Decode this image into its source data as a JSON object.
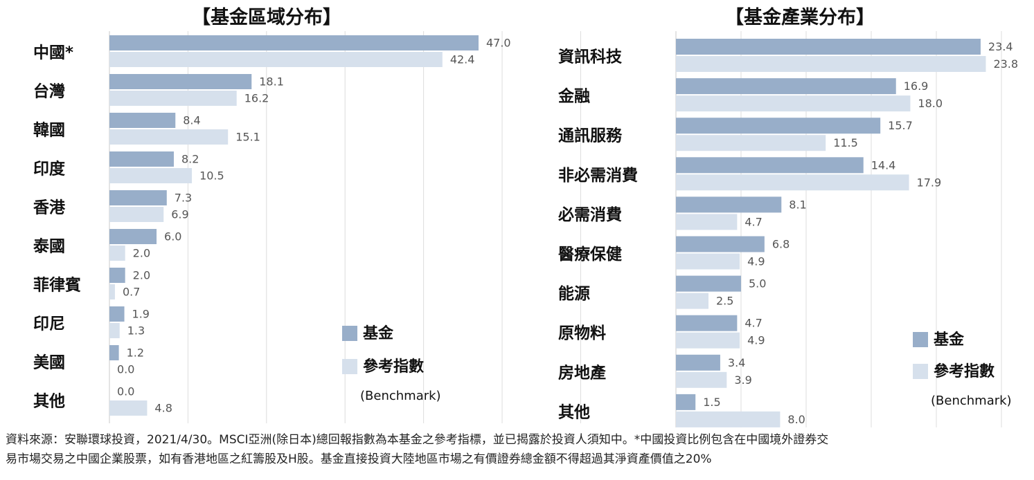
{
  "colors": {
    "fund": "#98aec9",
    "benchmark": "#d6e0ec",
    "grid": "#dcdcdc",
    "value_label": "#555555"
  },
  "legend": {
    "fund": "基金",
    "benchmark": "參考指數",
    "benchmark_sub": "(Benchmark)"
  },
  "chart_data": [
    {
      "type": "bar",
      "orientation": "horizontal",
      "title": "【基金區域分布】",
      "categories": [
        "中國*",
        "台灣",
        "韓國",
        "印度",
        "香港",
        "泰國",
        "菲律賓",
        "印尼",
        "美國",
        "其他"
      ],
      "series": [
        {
          "name": "基金",
          "values": [
            47.0,
            18.1,
            8.4,
            8.2,
            7.3,
            6.0,
            2.0,
            1.9,
            1.2,
            0.0
          ]
        },
        {
          "name": "參考指數",
          "values": [
            42.4,
            16.2,
            15.1,
            10.5,
            6.9,
            2.0,
            0.7,
            1.3,
            0.0,
            4.8
          ]
        }
      ],
      "xlim": [
        0,
        50
      ],
      "grid": true,
      "legend_position": "bottom-right"
    },
    {
      "type": "bar",
      "orientation": "horizontal",
      "title": "【基金產業分布】",
      "categories": [
        "資訊科技",
        "金融",
        "通訊服務",
        "非必需消費",
        "必需消費",
        "醫療保健",
        "能源",
        "原物料",
        "房地產",
        "其他"
      ],
      "series": [
        {
          "name": "基金",
          "values": [
            23.4,
            16.9,
            15.7,
            14.4,
            8.1,
            6.8,
            5.0,
            4.7,
            3.4,
            1.5
          ]
        },
        {
          "name": "參考指數",
          "values": [
            23.8,
            18.0,
            11.5,
            17.9,
            4.7,
            4.9,
            2.5,
            4.9,
            3.9,
            8.0
          ]
        }
      ],
      "xlim": [
        0,
        27
      ],
      "grid": true,
      "legend_position": "bottom-right"
    }
  ],
  "footnote": {
    "line1": "資料來源：安聯環球投資，2021/4/30。MSCI亞洲(除日本)總回報指數為本基金之參考指標，並已揭露於投資人須知中。*中國投資比例包含在中國境外證券交",
    "line2": "易市場交易之中國企業股票，如有香港地區之紅籌股及H股。基金直接投資大陸地區市場之有價證券總金額不得超過其淨資產價值之20%"
  }
}
